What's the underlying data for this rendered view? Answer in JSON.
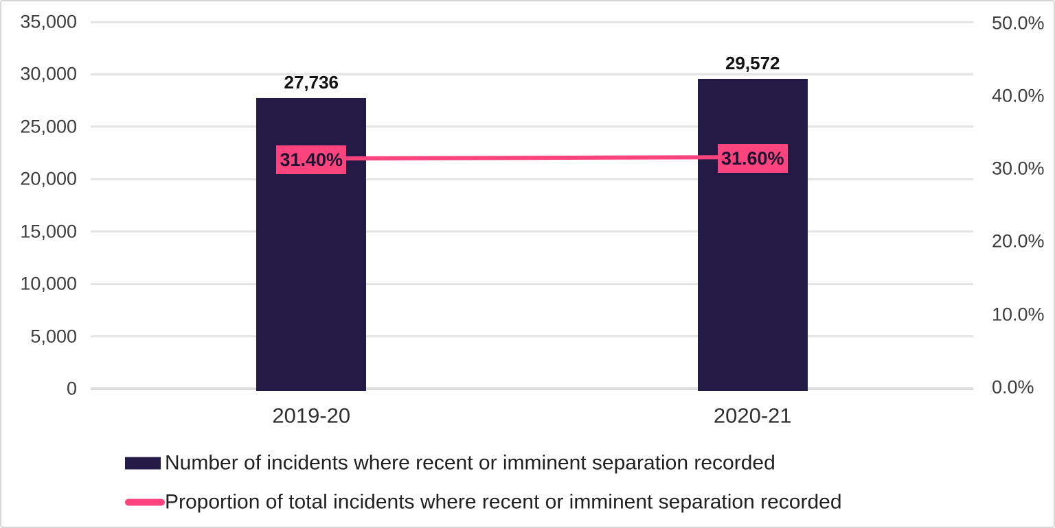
{
  "chart_data": {
    "type": "bar",
    "subtype": "combo-bar-line-dual-axis",
    "categories": [
      "2019-20",
      "2020-21"
    ],
    "series": [
      {
        "name": "Number of incidents where recent or imminent separation recorded",
        "type": "bar",
        "axis": "left",
        "values": [
          27736,
          29572
        ],
        "value_labels": [
          "27,736",
          "29,572"
        ],
        "color": "#241a46"
      },
      {
        "name": "Proportion of total incidents where recent or imminent separation recorded",
        "type": "line",
        "axis": "right",
        "values": [
          31.4,
          31.6
        ],
        "value_labels": [
          "31.40%",
          "31.60%"
        ],
        "color": "#fb437d"
      }
    ],
    "left_axis": {
      "tick_labels": [
        "35,000",
        "30,000",
        "25,000",
        "20,000",
        "15,000",
        "10,000",
        "5,000",
        "0"
      ],
      "tick_values": [
        35000,
        30000,
        25000,
        20000,
        15000,
        10000,
        5000,
        0
      ],
      "min": 0,
      "max": 35000
    },
    "right_axis": {
      "tick_labels": [
        "50.0%",
        "40.0%",
        "30.0%",
        "20.0%",
        "10.0%",
        "0.0%"
      ],
      "tick_values": [
        50,
        40,
        30,
        20,
        10,
        0
      ],
      "min": 0,
      "max": 50
    },
    "grid": true,
    "legend_position": "bottom-left"
  },
  "colors": {
    "bar": "#241a46",
    "line": "#fb437d",
    "label_box_bg": "#fb437d",
    "label_box_text": "#1b1232",
    "grid": "#e4e4e4",
    "baseline": "#dcdcdc",
    "tick_text": "#3d3d3d",
    "category_text": "#2f2f2f",
    "bar_label_text": "#121212",
    "legend_text": "#212121",
    "border": "#d7d7d7",
    "background": "#ffffff"
  }
}
